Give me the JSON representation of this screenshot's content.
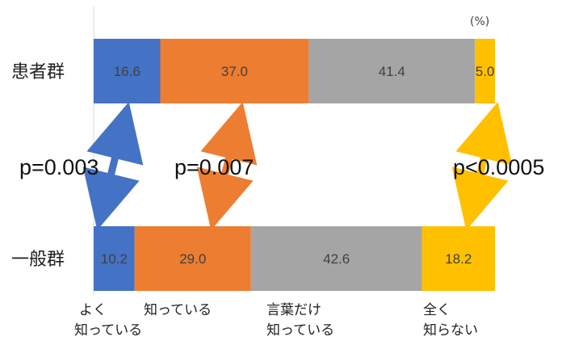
{
  "chart_data": {
    "type": "bar",
    "orientation": "horizontal",
    "stacked": true,
    "unit_label": "(%)",
    "groups": [
      "患者群",
      "一般群"
    ],
    "categories": [
      [
        "よく",
        "知っている"
      ],
      [
        "知っている"
      ],
      [
        "言葉だけ",
        "知っている"
      ],
      [
        "全く",
        "知らない"
      ]
    ],
    "colors": [
      "#4472c4",
      "#ed7d31",
      "#a5a5a5",
      "#ffc000"
    ],
    "series": [
      {
        "group": "患者群",
        "values": [
          16.6,
          37.0,
          41.4,
          5.0
        ],
        "labels": [
          "16.6",
          "37.0",
          "41.4",
          "5.0"
        ]
      },
      {
        "group": "一般群",
        "values": [
          10.2,
          29.0,
          42.6,
          18.2
        ],
        "labels": [
          "10.2",
          "29.0",
          "42.6",
          "18.2"
        ]
      }
    ],
    "comparisons": [
      {
        "category_index": 0,
        "p_value": "p=0.003"
      },
      {
        "category_index": 1,
        "p_value": "p=0.007"
      },
      {
        "category_index": 3,
        "p_value": "p<0.0005"
      }
    ],
    "xlim": [
      0,
      100
    ]
  }
}
